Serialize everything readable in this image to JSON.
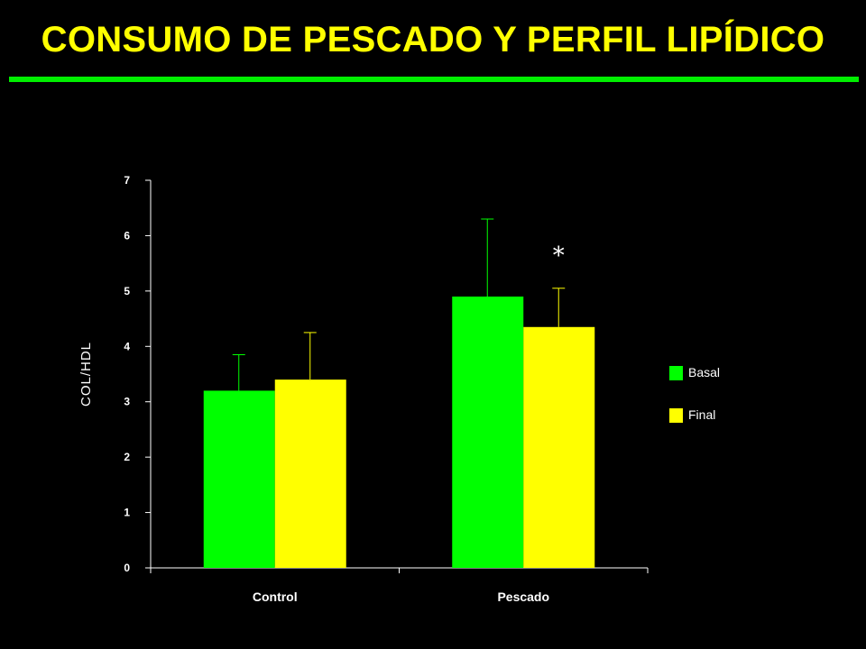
{
  "title": "CONSUMO DE PESCADO Y PERFIL LIPÍDICO",
  "colors": {
    "background": "#000000",
    "title": "#ffff00",
    "rule": "#00ee00",
    "axis": "#ffffff",
    "basal": "#00ff00",
    "final": "#ffff00"
  },
  "chart_data": {
    "type": "bar",
    "categories": [
      "Control",
      "Pescado"
    ],
    "series": [
      {
        "name": "Basal",
        "values": [
          3.2,
          4.9
        ],
        "error": [
          0.65,
          1.4
        ],
        "color": "#00ff00"
      },
      {
        "name": "Final",
        "values": [
          3.4,
          4.35
        ],
        "error": [
          0.85,
          0.7
        ],
        "color": "#ffff00"
      }
    ],
    "yticks": [
      "0",
      "1",
      "2",
      "3",
      "4",
      "5",
      "6",
      "7"
    ],
    "ylim": [
      0,
      7
    ],
    "ylabel": "COL/HDL",
    "xlabel": "",
    "legend_position": "right",
    "grid": false,
    "annotations": [
      {
        "text": "*",
        "category": "Pescado",
        "series": "Final"
      }
    ]
  }
}
